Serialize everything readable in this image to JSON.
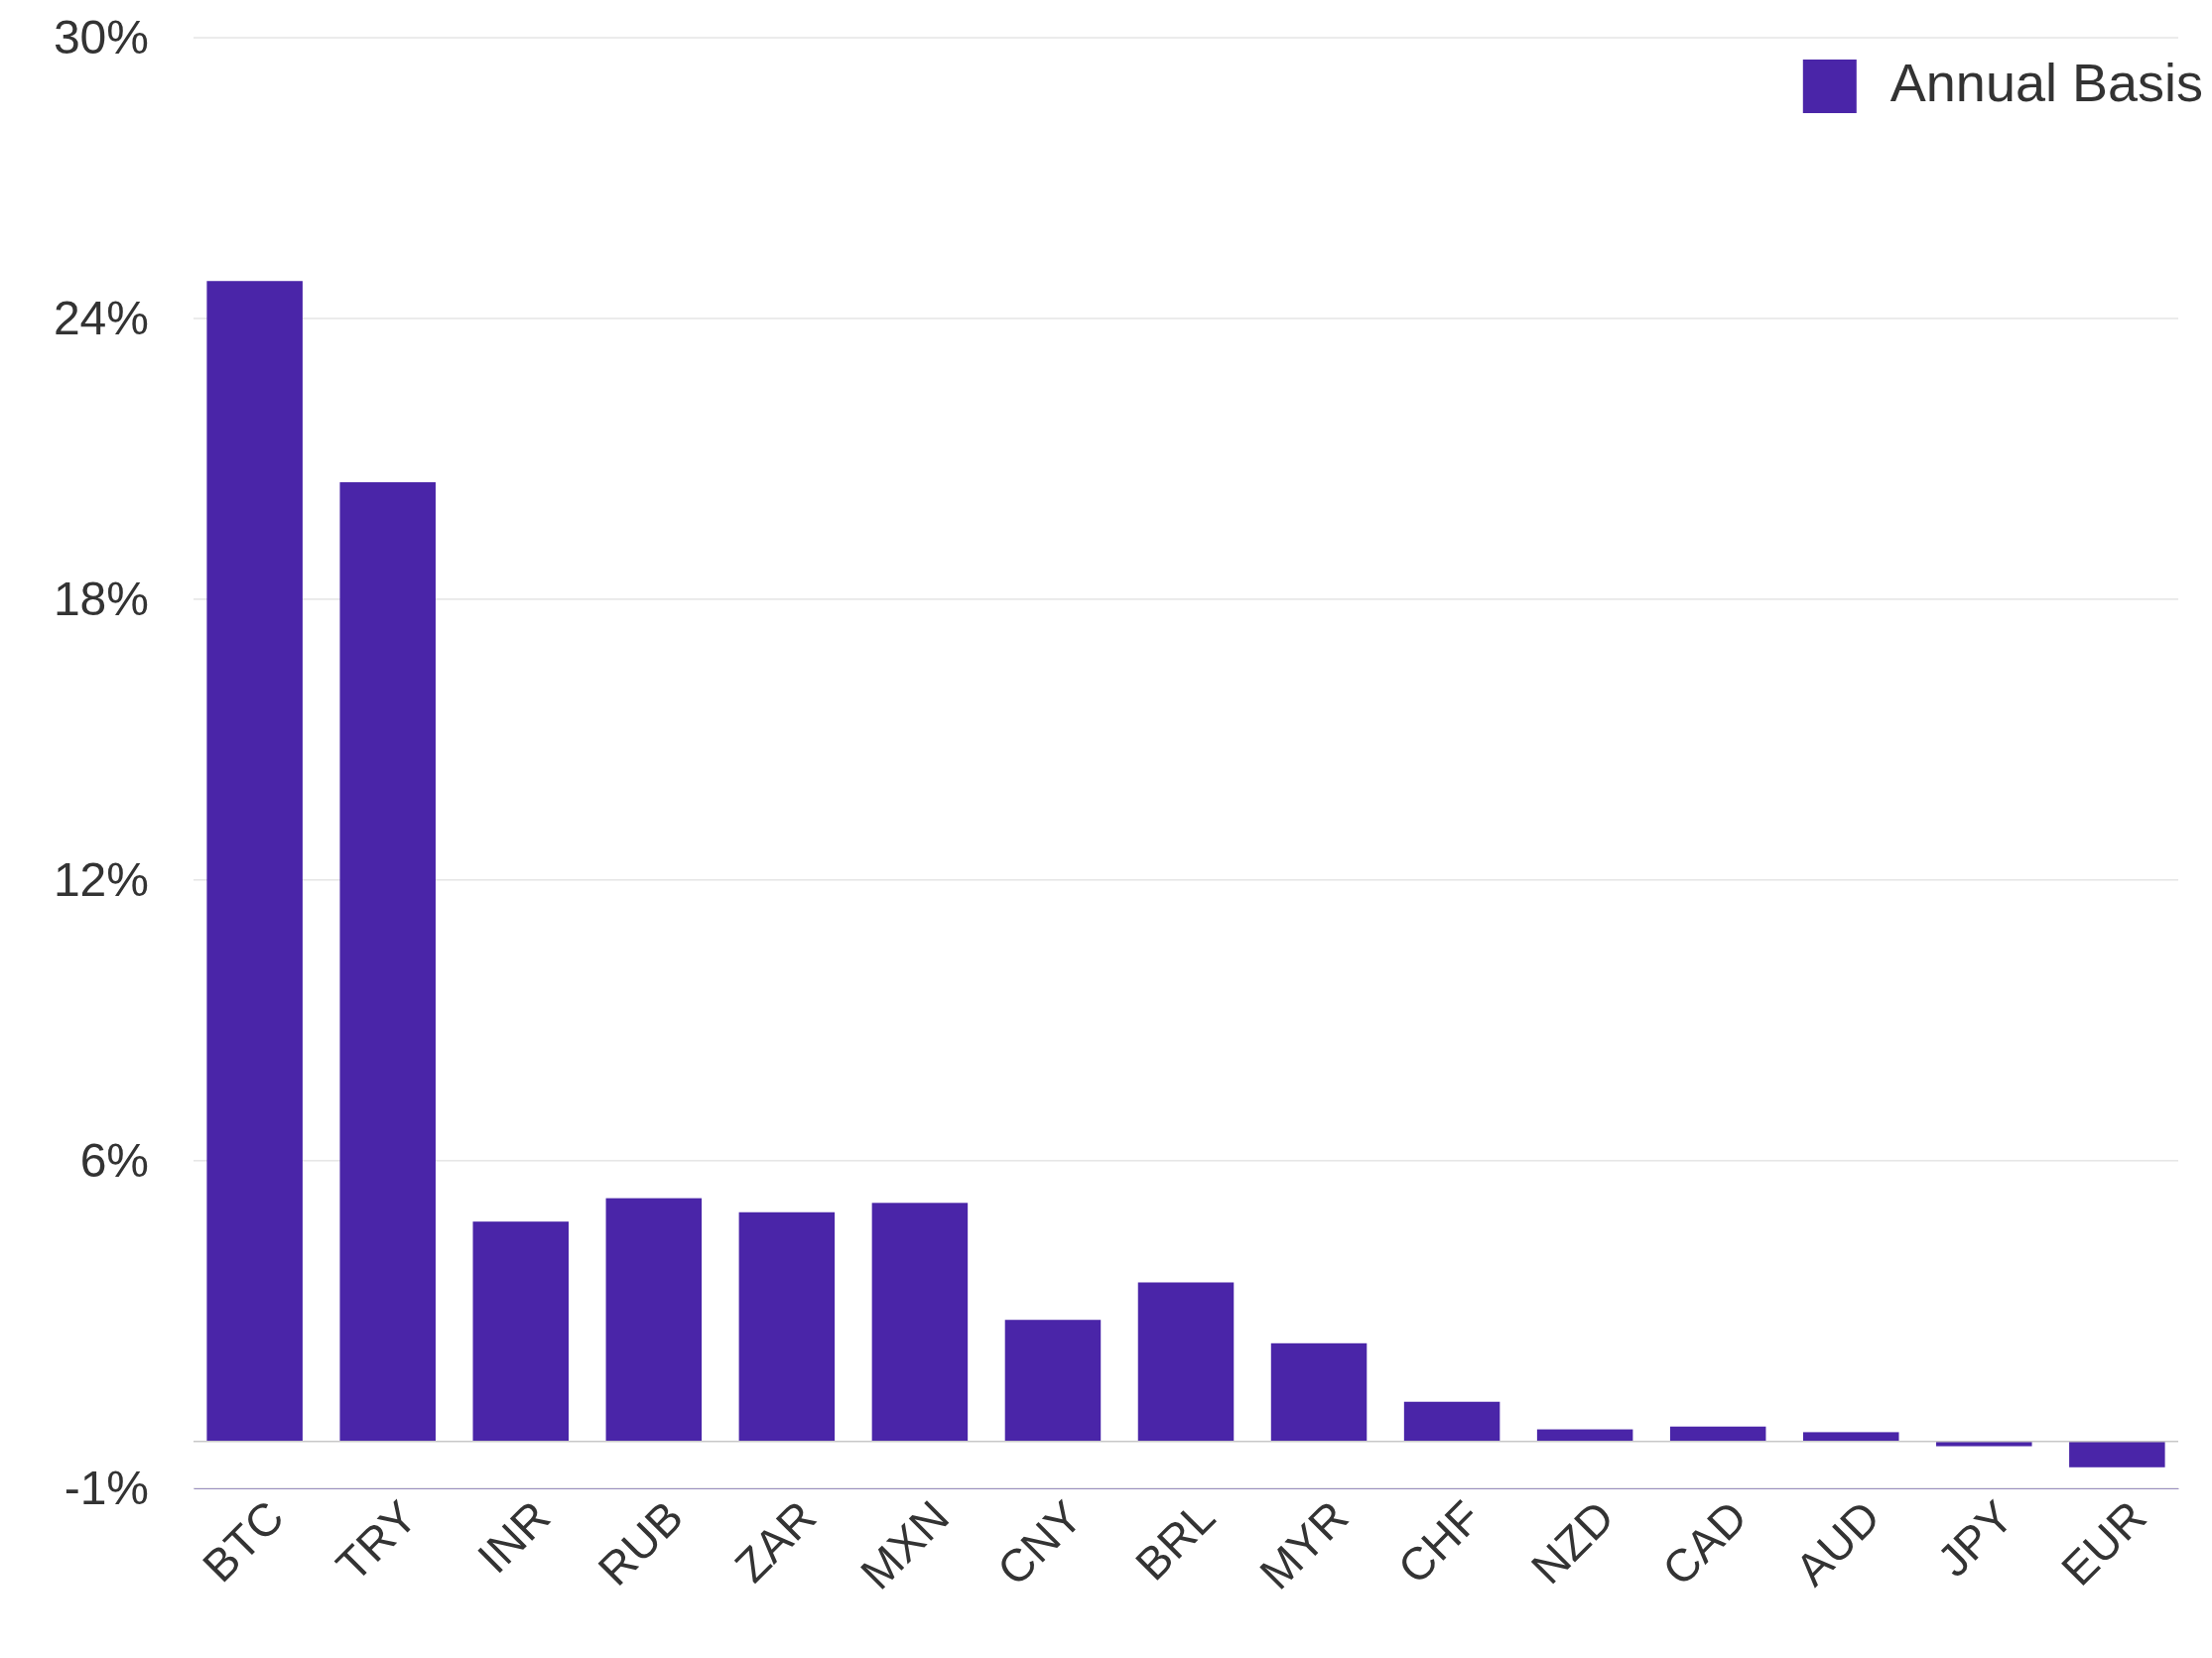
{
  "chart_data": {
    "type": "bar",
    "categories": [
      "BTC",
      "TRY",
      "INR",
      "RUB",
      "ZAR",
      "MXN",
      "CNY",
      "BRL",
      "MYR",
      "CHF",
      "NZD",
      "CAD",
      "AUD",
      "JPY",
      "EUR"
    ],
    "series": [
      {
        "name": "Annual Basis",
        "color": "#4a25a8",
        "values": [
          24.8,
          20.5,
          4.7,
          5.2,
          4.9,
          5.1,
          2.6,
          3.4,
          2.1,
          0.85,
          0.26,
          0.32,
          0.2,
          -0.1,
          -0.55
        ]
      }
    ],
    "ylim": [
      -1,
      30
    ],
    "yticks": [
      {
        "value": -1,
        "label": "-1%"
      },
      {
        "value": 6,
        "label": "6%"
      },
      {
        "value": 12,
        "label": "12%"
      },
      {
        "value": 18,
        "label": "18%"
      },
      {
        "value": 24,
        "label": "24%"
      },
      {
        "value": 30,
        "label": "30%"
      }
    ],
    "ref_lines": [
      {
        "axis": "y",
        "value": 0,
        "color": "#c8c8c8"
      }
    ],
    "grid": "y",
    "legend": "top right"
  }
}
